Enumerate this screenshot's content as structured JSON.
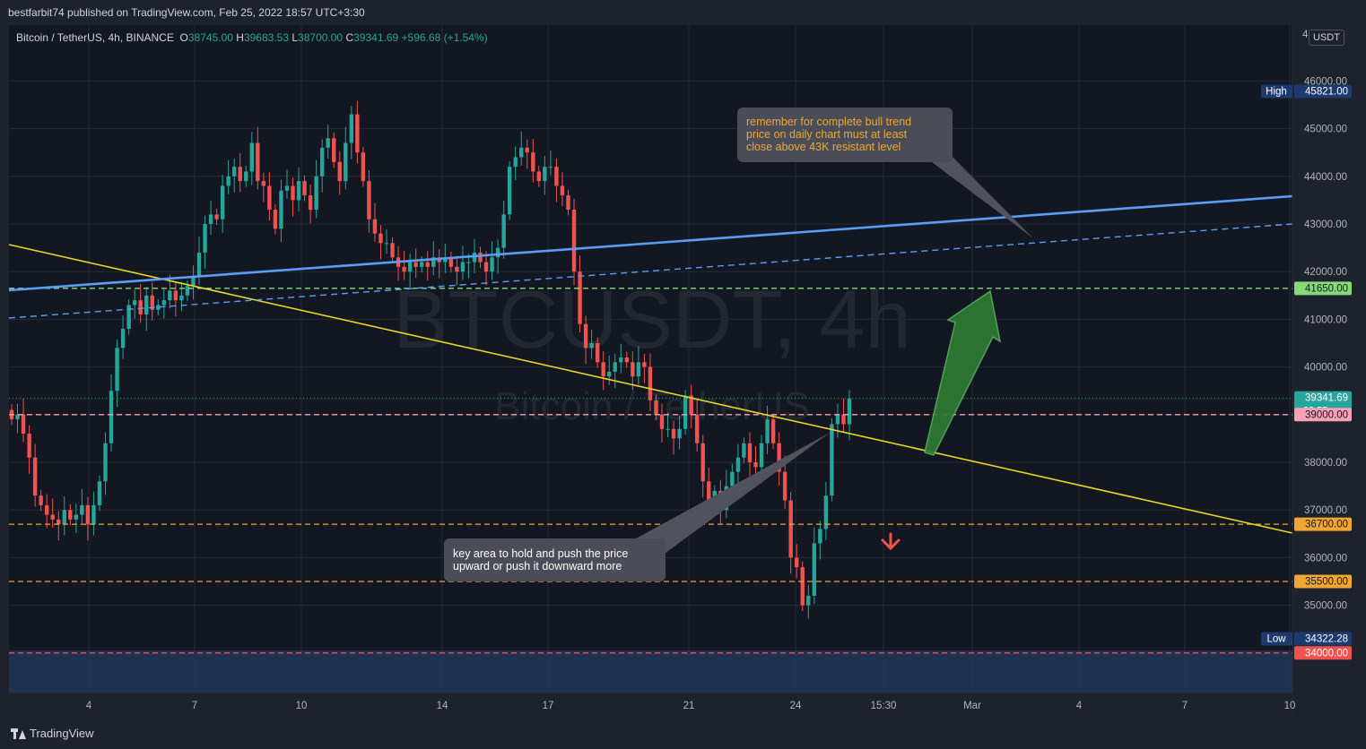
{
  "header": {
    "published_by": "bestfarbit74 published on TradingView.com, Feb 25, 2022 18:57 UTC+3:30"
  },
  "legend": {
    "symbol": "Bitcoin / TetherUS, 4h, BINANCE",
    "open_label": "O",
    "open": "38745.00",
    "high_label": "H",
    "high": "39683.53",
    "low_label": "L",
    "low": "38700.00",
    "close_label": "C",
    "close": "39341.69",
    "change": "+596.68 (+1.54%)"
  },
  "currency_button": "USDT",
  "footer": {
    "brand": "TradingView"
  },
  "colors": {
    "background": "#131722",
    "up": "#26a69a",
    "down": "#ef5350",
    "trendline_yellow": "#e6d72a",
    "channel_blue": "#5b9cf6",
    "green_level": "#86d97a",
    "orange_level": "#f0a731",
    "pink_level": "#f7a1b5"
  },
  "chart_data": {
    "type": "candlestick",
    "watermark_symbol": "BTCUSDT, 4h",
    "watermark_name": "Bitcoin / TetherUS",
    "y_axis": {
      "ticks": [
        "35000.00",
        "36000.00",
        "37000.00",
        "38000.00",
        "39000.00",
        "40000.00",
        "41000.00",
        "42000.00",
        "43000.00",
        "44000.00",
        "45000.00",
        "46000.00"
      ],
      "top_partial_tick": "4"
    },
    "x_axis": {
      "ticks": [
        "4",
        "7",
        "10",
        "14",
        "17",
        "21",
        "24",
        "15:30",
        "Mar",
        "4",
        "7",
        "10"
      ]
    },
    "price_labels": [
      {
        "label": "High",
        "value": "45821.00",
        "kind": "high"
      },
      {
        "value": "41650.00",
        "kind": "green"
      },
      {
        "value": "39341.69",
        "sub": "33:55",
        "kind": "last"
      },
      {
        "value": "39000.00",
        "kind": "pink"
      },
      {
        "value": "36700.00",
        "kind": "orange"
      },
      {
        "value": "35500.00",
        "kind": "orange"
      },
      {
        "label": "Low",
        "value": "34322.28",
        "kind": "low"
      },
      {
        "value": "34000.00",
        "kind": "red"
      }
    ],
    "candles_path": [
      39100,
      38900,
      39000,
      38600,
      38100,
      37300,
      37100,
      36900,
      36800,
      36700,
      37000,
      36800,
      36900,
      37100,
      36700,
      37100,
      37600,
      38400,
      39500,
      40400,
      40800,
      41300,
      41400,
      41100,
      41500,
      41200,
      41300,
      41400,
      41600,
      41400,
      41500,
      41700,
      41900,
      42400,
      43000,
      43200,
      43100,
      43800,
      44000,
      44200,
      43900,
      44100,
      44700,
      43900,
      43800,
      43300,
      42900,
      43700,
      43800,
      43500,
      43900,
      43600,
      43300,
      44000,
      44600,
      44800,
      44300,
      43900,
      44700,
      45300,
      44500,
      43900,
      43100,
      42800,
      42600,
      42600,
      42300,
      42100,
      42000,
      42200,
      42100,
      42200,
      42100,
      42300,
      42200,
      42300,
      42100,
      42000,
      42200,
      42200,
      42400,
      42200,
      42000,
      42300,
      42500,
      43200,
      44200,
      44400,
      44600,
      44500,
      44100,
      43900,
      44200,
      44200,
      43800,
      43600,
      43300,
      42000,
      40900,
      40400,
      40500,
      40100,
      39800,
      39900,
      40100,
      40200,
      40100,
      39800,
      40100,
      40000,
      39300,
      39000,
      38700,
      38700,
      38500,
      38700,
      39400,
      39000,
      38400,
      37600,
      37100,
      37400,
      37000,
      37500,
      37800,
      38100,
      38400,
      38000,
      37900,
      38400,
      38900,
      38400,
      37800,
      37200,
      36000,
      35800,
      35000,
      35200,
      36300,
      36600,
      37300,
      38800,
      39000,
      38800,
      39341
    ],
    "levels": [
      {
        "value": 41650,
        "style": "dashed",
        "color": "green"
      },
      {
        "value": 39000,
        "style": "dashed",
        "color": "pink"
      },
      {
        "value": 36700,
        "style": "dashed",
        "color": "orange"
      },
      {
        "value": 35500,
        "style": "dashed",
        "color": "orange"
      },
      {
        "value": 34000,
        "style": "dashed",
        "color": "red"
      }
    ],
    "annotations": [
      {
        "text": "remember for complete bull trend price on daily chart must at least close above 43K resistant level"
      },
      {
        "text": "key area to hold  and push the price upward or push it downward more"
      }
    ],
    "grid": true
  }
}
